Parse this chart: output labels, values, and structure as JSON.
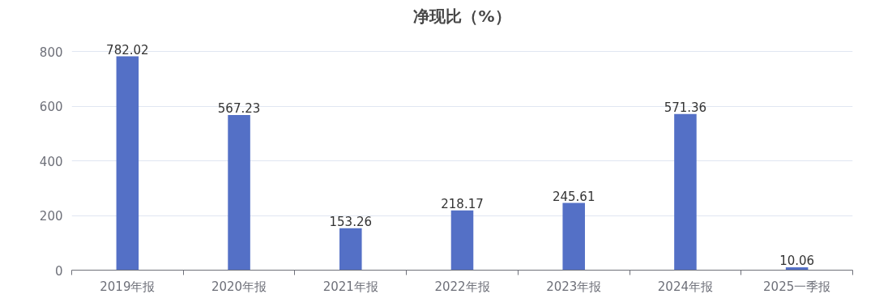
{
  "chart_data": {
    "type": "bar",
    "title": "净现比（%）",
    "categories": [
      "2019年报",
      "2020年报",
      "2021年报",
      "2022年报",
      "2023年报",
      "2024年报",
      "2025一季报"
    ],
    "values": [
      782.02,
      567.23,
      153.26,
      218.17,
      245.61,
      571.36,
      10.06
    ],
    "color": "#5470c6",
    "ylim": [
      0,
      800
    ],
    "yticks": [
      0,
      200,
      400,
      600,
      800
    ],
    "grid": "y",
    "data_labels": true
  }
}
